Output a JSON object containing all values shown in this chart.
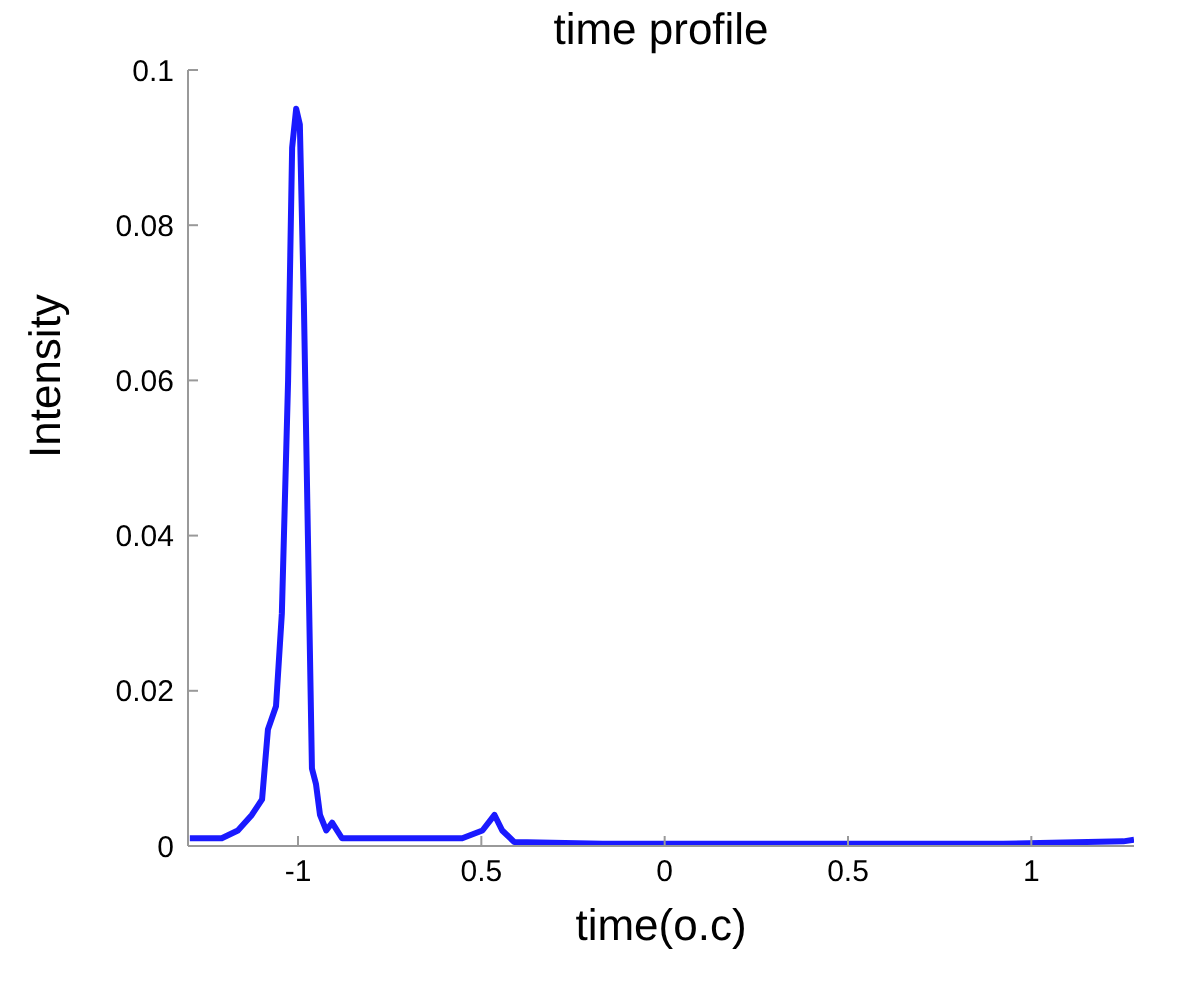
{
  "chart_data": {
    "type": "line",
    "title": "time profile",
    "xlabel": "time(o.c)",
    "ylabel": "Intensity",
    "xlim": [
      -1.3,
      1.28
    ],
    "xticks": [
      {
        "value": -1,
        "label": "-1"
      },
      {
        "value": -0.5,
        "label": "0.5"
      },
      0,
      0.5,
      1
    ],
    "ylim": [
      0,
      0.1
    ],
    "yticks": [
      0,
      0.02,
      0.04,
      0.06,
      0.08,
      0.1
    ],
    "grid": false,
    "legend": false,
    "marker": "none",
    "line_style": "solid",
    "x": [
      -1.295,
      -1.208,
      -1.164,
      -1.126,
      -1.098,
      -1.082,
      -1.06,
      -1.044,
      -1.027,
      -1.016,
      -1.005,
      -0.995,
      -0.984,
      -0.973,
      -0.962,
      -0.951,
      -0.94,
      -0.923,
      -0.907,
      -0.88,
      -0.716,
      -0.552,
      -0.497,
      -0.464,
      -0.443,
      -0.41,
      -0.169,
      0.377,
      0.923,
      1.251,
      1.28
    ],
    "series": [
      {
        "color": "#1a1aff",
        "values": [
          0.001,
          0.001,
          0.002,
          0.004,
          0.006,
          0.015,
          0.018,
          0.03,
          0.06,
          0.09,
          0.095,
          0.093,
          0.07,
          0.04,
          0.01,
          0.008,
          0.004,
          0.002,
          0.003,
          0.001,
          0.001,
          0.001,
          0.002,
          0.004,
          0.002,
          0.0005,
          0.0003,
          0.0003,
          0.0003,
          0.0006,
          0.0008
        ]
      }
    ]
  }
}
